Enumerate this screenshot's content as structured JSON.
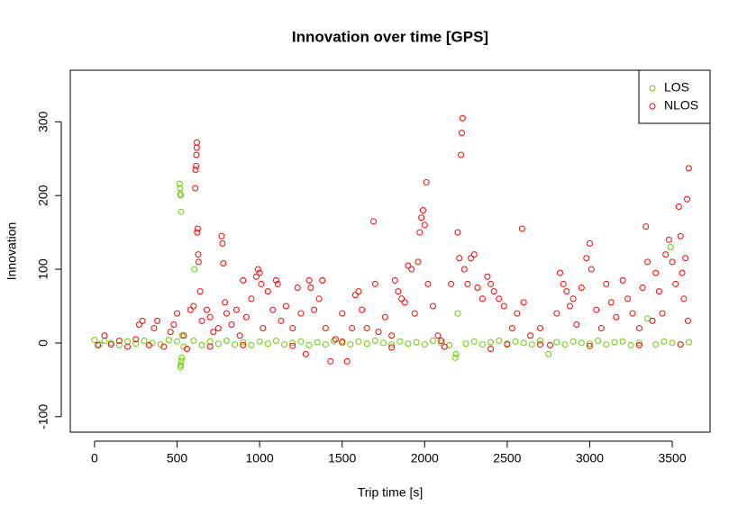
{
  "chart_data": {
    "type": "scatter",
    "title": "Innovation over time [GPS]",
    "x_label": "Trip time [s]",
    "y_label": "Innovation",
    "xlim": [
      -147,
      3729
    ],
    "ylim": [
      -121,
      370
    ],
    "xticks": [
      0,
      500,
      1000,
      1500,
      2000,
      2500,
      3000,
      3500
    ],
    "yticks": [
      -100,
      0,
      100,
      200,
      300
    ],
    "legend": "topright",
    "series": [
      {
        "name": "LOS",
        "color": "#66cd00",
        "x": [
          0,
          30,
          60,
          100,
          150,
          200,
          250,
          300,
          350,
          400,
          450,
          500,
          515,
          518,
          520,
          522,
          524,
          520,
          522,
          525,
          528,
          530,
          540,
          600,
          605,
          650,
          700,
          750,
          800,
          850,
          900,
          950,
          1000,
          1050,
          1100,
          1150,
          1200,
          1250,
          1300,
          1350,
          1400,
          1450,
          1500,
          1550,
          1600,
          1650,
          1700,
          1750,
          1800,
          1850,
          1900,
          1950,
          2000,
          2050,
          2100,
          2150,
          2185,
          2190,
          2200,
          2250,
          2300,
          2350,
          2400,
          2450,
          2500,
          2550,
          2600,
          2650,
          2700,
          2750,
          2800,
          2850,
          2900,
          2950,
          3000,
          3050,
          3100,
          3150,
          3200,
          3250,
          3300,
          3350,
          3400,
          3450,
          3490,
          3500,
          3550,
          3600
        ],
        "values": [
          4,
          -2,
          3,
          0,
          -3,
          2,
          -1,
          3,
          0,
          -2,
          4,
          2,
          216,
          210,
          202,
          200,
          178,
          -33,
          -30,
          -25,
          -20,
          10,
          -5,
          3,
          100,
          -3,
          2,
          -1,
          3,
          -2,
          1,
          -3,
          2,
          -1,
          3,
          -2,
          0,
          2,
          -3,
          1,
          -2,
          3,
          0,
          -2,
          2,
          -1,
          3,
          0,
          -2,
          2,
          -1,
          1,
          -2,
          3,
          0,
          -3,
          -20,
          -15,
          40,
          -1,
          2,
          -2,
          1,
          3,
          -1,
          2,
          0,
          -2,
          3,
          -15,
          1,
          -2,
          2,
          0,
          -1,
          3,
          -2,
          1,
          2,
          -3,
          0,
          33,
          -2,
          2,
          130,
          0,
          -2,
          1
        ]
      },
      {
        "name": "NLOS",
        "color": "#ff0000",
        "x": [
          20,
          60,
          100,
          150,
          200,
          250,
          270,
          290,
          330,
          360,
          380,
          420,
          460,
          480,
          500,
          540,
          560,
          580,
          600,
          610,
          612,
          615,
          617,
          619,
          620,
          622,
          625,
          628,
          630,
          640,
          650,
          680,
          700,
          720,
          750,
          770,
          775,
          780,
          790,
          800,
          830,
          860,
          880,
          900,
          920,
          950,
          980,
          990,
          1000,
          1010,
          1020,
          1050,
          1080,
          1100,
          1110,
          1130,
          1160,
          1200,
          1230,
          1250,
          1280,
          1300,
          1310,
          1330,
          1360,
          1380,
          1400,
          1430,
          1460,
          1500,
          1530,
          1560,
          1580,
          1600,
          1620,
          1650,
          1690,
          1700,
          1720,
          1760,
          1800,
          1820,
          1840,
          1860,
          1880,
          1900,
          1920,
          1940,
          1960,
          1970,
          1980,
          1990,
          2000,
          2010,
          2020,
          2050,
          2080,
          2120,
          2160,
          2200,
          2210,
          2220,
          2225,
          2230,
          2240,
          2260,
          2280,
          2300,
          2320,
          2350,
          2380,
          2400,
          2420,
          2450,
          2480,
          2500,
          2530,
          2560,
          2590,
          2600,
          2640,
          2700,
          2760,
          2800,
          2820,
          2840,
          2860,
          2880,
          2900,
          2920,
          2950,
          2980,
          3000,
          3010,
          3040,
          3070,
          3100,
          3130,
          3160,
          3200,
          3230,
          3260,
          3300,
          3320,
          3340,
          3350,
          3380,
          3400,
          3420,
          3440,
          3460,
          3480,
          3500,
          3520,
          3540,
          3550,
          3560,
          3570,
          3580,
          3590,
          3600,
          3595,
          700,
          900,
          1200,
          1500,
          1800,
          2100,
          2400,
          2700,
          3000,
          3300,
          3550
        ],
        "values": [
          -3,
          10,
          -2,
          3,
          -5,
          5,
          25,
          30,
          -3,
          20,
          30,
          -5,
          15,
          25,
          40,
          10,
          -8,
          45,
          50,
          210,
          235,
          240,
          255,
          265,
          272,
          150,
          155,
          120,
          110,
          70,
          30,
          45,
          35,
          15,
          20,
          145,
          135,
          108,
          55,
          40,
          25,
          45,
          10,
          85,
          35,
          60,
          90,
          100,
          95,
          80,
          20,
          70,
          45,
          85,
          80,
          30,
          50,
          20,
          75,
          40,
          -15,
          85,
          75,
          45,
          60,
          85,
          20,
          -25,
          5,
          40,
          -25,
          20,
          65,
          70,
          45,
          20,
          165,
          80,
          15,
          35,
          10,
          85,
          70,
          60,
          55,
          105,
          100,
          40,
          110,
          150,
          170,
          180,
          160,
          218,
          80,
          50,
          10,
          -5,
          80,
          150,
          115,
          255,
          285,
          305,
          100,
          80,
          115,
          120,
          75,
          60,
          90,
          80,
          70,
          60,
          50,
          -2,
          20,
          40,
          155,
          55,
          10,
          20,
          -3,
          40,
          95,
          80,
          70,
          50,
          60,
          25,
          75,
          115,
          135,
          100,
          45,
          20,
          80,
          55,
          35,
          85,
          60,
          40,
          20,
          75,
          158,
          110,
          30,
          95,
          70,
          40,
          120,
          140,
          110,
          80,
          185,
          145,
          95,
          60,
          115,
          195,
          237,
          30,
          -5,
          -3,
          -4,
          2,
          -6,
          3,
          -8,
          -2,
          -4,
          -3,
          -2
        ]
      }
    ]
  }
}
